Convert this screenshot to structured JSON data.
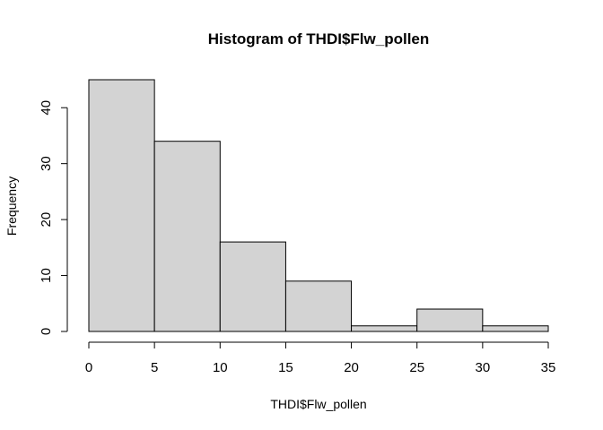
{
  "chart_data": {
    "type": "bar",
    "subtype": "histogram",
    "title": "Histogram of THDI$Flw_pollen",
    "xlabel": "THDI$Flw_pollen",
    "ylabel": "Frequency",
    "bins": [
      {
        "from": 0,
        "to": 5,
        "count": 45
      },
      {
        "from": 5,
        "to": 10,
        "count": 34
      },
      {
        "from": 10,
        "to": 15,
        "count": 16
      },
      {
        "from": 15,
        "to": 20,
        "count": 9
      },
      {
        "from": 20,
        "to": 25,
        "count": 1
      },
      {
        "from": 25,
        "to": 30,
        "count": 4
      },
      {
        "from": 30,
        "to": 35,
        "count": 1
      }
    ],
    "xlim": [
      0,
      35
    ],
    "ylim": [
      0,
      45
    ],
    "x_ticks": [
      "0",
      "5",
      "10",
      "15",
      "20",
      "25",
      "30",
      "35"
    ],
    "y_ticks": [
      "0",
      "10",
      "20",
      "30",
      "40"
    ],
    "bar_fill": "#d3d3d3",
    "bar_stroke": "#000000",
    "grid": false,
    "legend": "none"
  }
}
